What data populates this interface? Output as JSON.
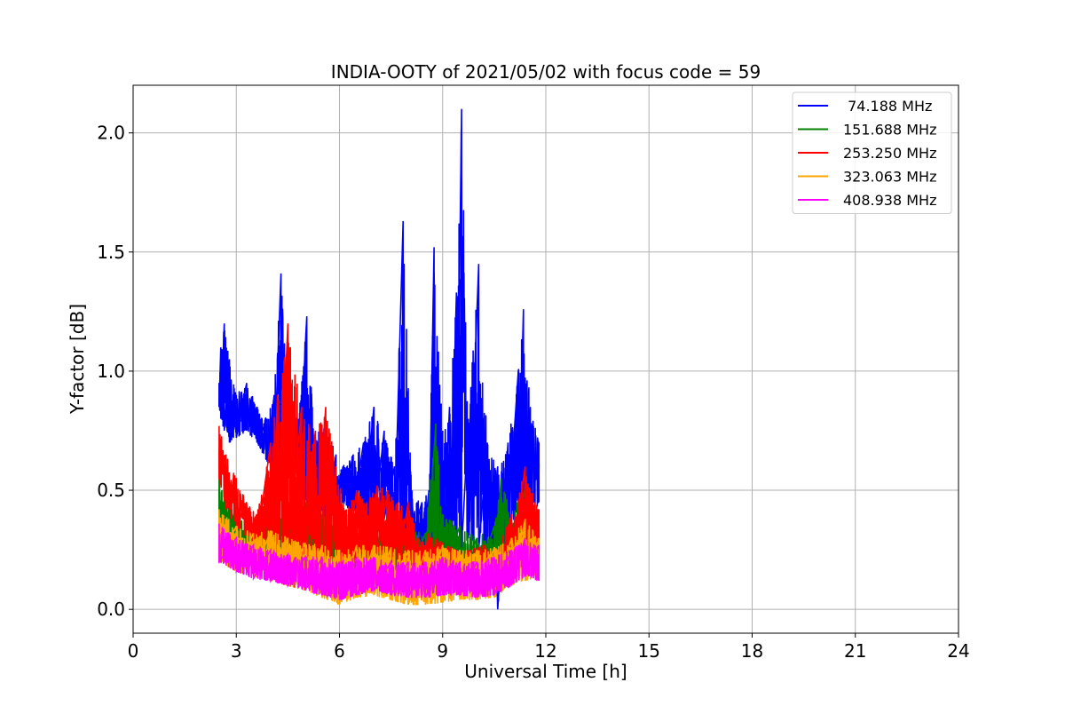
{
  "chart_data": {
    "type": "line",
    "title": "INDIA-OOTY of 2021/05/02 with focus code = 59",
    "xlabel": "Universal Time [h]",
    "ylabel": "Y-factor [dB]",
    "xlim": [
      0,
      24
    ],
    "ylim": [
      -0.1,
      2.2
    ],
    "xticks": [
      0,
      3,
      6,
      9,
      12,
      15,
      18,
      21,
      24
    ],
    "xtick_labels": [
      "0",
      "3",
      "6",
      "9",
      "12",
      "15",
      "18",
      "21",
      "24"
    ],
    "yticks": [
      0.0,
      0.5,
      1.0,
      1.5,
      2.0
    ],
    "ytick_labels": [
      "0.0",
      "0.5",
      "1.0",
      "1.5",
      "2.0"
    ],
    "grid": true,
    "legend_position": "top-right",
    "series": [
      {
        "name": " 74.188 MHz",
        "color": "#0000ff",
        "x": [
          2.5,
          2.55,
          2.65,
          2.8,
          3.0,
          3.3,
          3.6,
          3.9,
          4.1,
          4.3,
          4.5,
          4.8,
          5.05,
          5.3,
          5.6,
          5.9,
          6.1,
          6.4,
          6.7,
          7.0,
          7.3,
          7.6,
          7.85,
          8.1,
          8.4,
          8.6,
          8.75,
          9.0,
          9.2,
          9.4,
          9.55,
          9.75,
          10.05,
          10.3,
          10.6,
          10.9,
          11.2,
          11.35,
          11.55,
          11.8
        ],
        "y": [
          0.95,
          1.1,
          1.2,
          1.05,
          0.9,
          0.95,
          0.85,
          0.8,
          0.9,
          1.41,
          0.85,
          0.8,
          1.23,
          0.72,
          0.8,
          0.65,
          0.6,
          0.65,
          0.7,
          0.85,
          0.75,
          0.6,
          1.63,
          0.5,
          0.45,
          0.5,
          1.52,
          0.75,
          0.85,
          1.33,
          2.1,
          0.8,
          1.45,
          0.7,
          0.6,
          0.7,
          1.0,
          1.26,
          0.85,
          0.7
        ],
        "y_low": [
          0.85,
          0.8,
          0.75,
          0.7,
          0.72,
          0.75,
          0.7,
          0.62,
          0.6,
          0.55,
          0.55,
          0.5,
          0.45,
          0.45,
          0.35,
          0.4,
          0.45,
          0.4,
          0.38,
          0.35,
          0.38,
          0.33,
          0.3,
          0.3,
          0.2,
          0.25,
          0.2,
          0.15,
          0.2,
          0.3,
          0.25,
          0.3,
          0.25,
          0.2,
          0.0,
          0.35,
          0.4,
          0.4,
          0.35,
          0.45
        ]
      },
      {
        "name": "151.688 MHz",
        "color": "#008000",
        "x": [
          2.5,
          2.8,
          3.1,
          3.5,
          4.0,
          4.5,
          5.0,
          5.5,
          6.0,
          6.5,
          7.0,
          7.5,
          8.0,
          8.5,
          8.8,
          9.0,
          9.5,
          10.0,
          10.5,
          10.7,
          11.0,
          11.4,
          11.8
        ],
        "y": [
          0.55,
          0.45,
          0.38,
          0.35,
          0.38,
          0.45,
          0.45,
          0.4,
          0.38,
          0.32,
          0.35,
          0.33,
          0.33,
          0.32,
          0.78,
          0.4,
          0.35,
          0.3,
          0.35,
          0.55,
          0.4,
          0.52,
          0.35
        ],
        "y_low": [
          0.35,
          0.3,
          0.25,
          0.25,
          0.22,
          0.2,
          0.18,
          0.15,
          0.12,
          0.15,
          0.15,
          0.14,
          0.12,
          0.1,
          0.12,
          0.15,
          0.14,
          0.12,
          0.1,
          0.18,
          0.18,
          0.22,
          0.2
        ]
      },
      {
        "name": "253.250 MHz",
        "color": "#ff0000",
        "x": [
          2.5,
          2.7,
          3.0,
          3.3,
          3.6,
          4.0,
          4.2,
          4.5,
          4.9,
          5.3,
          5.6,
          5.9,
          6.2,
          6.5,
          6.8,
          7.1,
          7.4,
          7.7,
          8.0,
          8.3,
          8.6,
          9.0,
          9.4,
          9.8,
          10.2,
          10.6,
          11.0,
          11.4,
          11.8
        ],
        "y": [
          0.77,
          0.65,
          0.55,
          0.45,
          0.4,
          0.7,
          0.9,
          1.2,
          0.85,
          0.75,
          0.85,
          0.6,
          0.42,
          0.5,
          0.45,
          0.52,
          0.5,
          0.45,
          0.45,
          0.3,
          0.32,
          0.28,
          0.25,
          0.25,
          0.27,
          0.25,
          0.4,
          0.6,
          0.42
        ],
        "y_low": [
          0.55,
          0.42,
          0.35,
          0.3,
          0.28,
          0.25,
          0.22,
          0.22,
          0.2,
          0.18,
          0.15,
          0.18,
          0.16,
          0.18,
          0.2,
          0.22,
          0.2,
          0.18,
          0.16,
          0.12,
          0.12,
          0.1,
          0.1,
          0.1,
          0.12,
          0.12,
          0.18,
          0.25,
          0.25
        ]
      },
      {
        "name": "323.063 MHz",
        "color": "#ffa500",
        "x": [
          2.5,
          3.0,
          3.5,
          4.0,
          4.5,
          5.0,
          5.5,
          6.0,
          6.5,
          7.0,
          7.5,
          8.0,
          8.5,
          9.0,
          9.5,
          10.0,
          10.5,
          11.0,
          11.4,
          11.8
        ],
        "y": [
          0.42,
          0.35,
          0.32,
          0.33,
          0.3,
          0.28,
          0.27,
          0.25,
          0.27,
          0.27,
          0.26,
          0.25,
          0.25,
          0.27,
          0.25,
          0.25,
          0.26,
          0.3,
          0.38,
          0.3
        ],
        "y_low": [
          0.2,
          0.16,
          0.14,
          0.12,
          0.1,
          0.08,
          0.05,
          0.02,
          0.05,
          0.06,
          0.04,
          0.02,
          0.02,
          0.03,
          0.04,
          0.04,
          0.05,
          0.1,
          0.12,
          0.14
        ]
      },
      {
        "name": "408.938 MHz",
        "color": "#ff00ff",
        "x": [
          2.5,
          3.0,
          3.5,
          4.0,
          4.5,
          5.0,
          5.5,
          6.0,
          6.5,
          7.0,
          7.5,
          8.0,
          8.5,
          9.0,
          9.5,
          10.0,
          10.5,
          11.0,
          11.4,
          11.8
        ],
        "y": [
          0.36,
          0.3,
          0.27,
          0.25,
          0.23,
          0.22,
          0.22,
          0.2,
          0.22,
          0.22,
          0.2,
          0.2,
          0.2,
          0.22,
          0.2,
          0.2,
          0.22,
          0.25,
          0.3,
          0.27
        ],
        "y_low": [
          0.2,
          0.16,
          0.13,
          0.12,
          0.1,
          0.08,
          0.06,
          0.04,
          0.06,
          0.08,
          0.06,
          0.05,
          0.05,
          0.06,
          0.06,
          0.05,
          0.06,
          0.1,
          0.14,
          0.12
        ]
      }
    ]
  }
}
